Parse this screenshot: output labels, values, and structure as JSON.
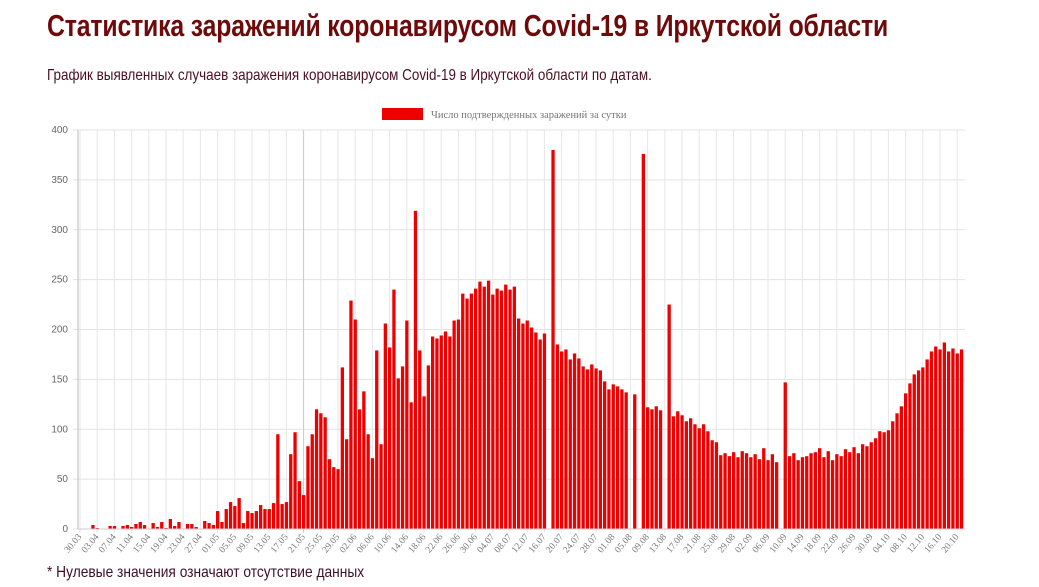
{
  "page": {
    "title": "Статистика заражений коронавирусом Covid-19 в Иркутской области",
    "subtitle": "График выявленных случаев заражения коронавирусом Covid-19 в Иркутской области по датам.",
    "footnote": "* Нулевые значения означают отсутствие данных"
  },
  "colors": {
    "bar": "#ee0000",
    "title": "#6e0a0a"
  },
  "chart_data": {
    "type": "bar",
    "title": "",
    "legend": {
      "label": "Число подтвержденных заражений за сутки",
      "placement": "top-center"
    },
    "xlabel": "",
    "ylabel": "",
    "ylim": [
      0,
      400
    ],
    "yticks": [
      0,
      50,
      100,
      150,
      200,
      250,
      300,
      350,
      400
    ],
    "grid": true,
    "x_start": "30.03",
    "x_step_days": 1,
    "tick_every": 4,
    "tick_labels": [
      "30.03",
      "03.04",
      "07.04",
      "11.04",
      "15.04",
      "19.04",
      "23.04",
      "27.04",
      "01.05",
      "05.05",
      "09.05",
      "13.05",
      "17.05",
      "21.05",
      "25.05",
      "29.05",
      "02.06",
      "06.06",
      "10.06",
      "14.06",
      "18.06",
      "22.06",
      "26.06",
      "30.06",
      "04.07",
      "08.07",
      "12.07",
      "16.07",
      "20.07",
      "24.07",
      "28.07",
      "01.08",
      "05.08",
      "09.08",
      "13.08",
      "17.08",
      "21.08",
      "25.08",
      "29.08",
      "02.09",
      "06.09",
      "10.09",
      "14.09",
      "18.09",
      "22.09",
      "26.09",
      "30.09",
      "04.10",
      "08.10",
      "12.10",
      "16.10",
      "20.10"
    ],
    "values": [
      0,
      0,
      0,
      4,
      1,
      0,
      0,
      3,
      3,
      0,
      3,
      4,
      2,
      5,
      7,
      4,
      0,
      6,
      2,
      7,
      1,
      10,
      3,
      7,
      0,
      5,
      5,
      2,
      0,
      8,
      6,
      4,
      18,
      7,
      20,
      27,
      23,
      31,
      6,
      18,
      16,
      18,
      24,
      20,
      20,
      26,
      95,
      25,
      27,
      75,
      97,
      48,
      34,
      83,
      95,
      120,
      116,
      112,
      70,
      62,
      60,
      162,
      90,
      229,
      210,
      120,
      138,
      95,
      71,
      179,
      85,
      206,
      182,
      240,
      151,
      163,
      209,
      127,
      319,
      179,
      133,
      164,
      193,
      191,
      194,
      198,
      193,
      209,
      210,
      236,
      231,
      236,
      241,
      248,
      243,
      249,
      235,
      241,
      239,
      245,
      240,
      243,
      211,
      206,
      209,
      202,
      197,
      190,
      196,
      0,
      380,
      185,
      178,
      180,
      170,
      176,
      171,
      163,
      160,
      165,
      161,
      159,
      148,
      140,
      145,
      143,
      140,
      137,
      0,
      135,
      0,
      376,
      122,
      120,
      123,
      119,
      0,
      225,
      113,
      118,
      114,
      108,
      111,
      105,
      101,
      105,
      98,
      89,
      87,
      74,
      76,
      73,
      77,
      72,
      78,
      76,
      72,
      75,
      70,
      81,
      69,
      75,
      67,
      0,
      147,
      73,
      76,
      69,
      72,
      73,
      76,
      77,
      81,
      72,
      78,
      69,
      75,
      73,
      80,
      77,
      82,
      76,
      85,
      83,
      87,
      91,
      98,
      97,
      99,
      108,
      116,
      123,
      136,
      146,
      155,
      159,
      162,
      170,
      178,
      183,
      180,
      187,
      178,
      181,
      176,
      180
    ]
  }
}
